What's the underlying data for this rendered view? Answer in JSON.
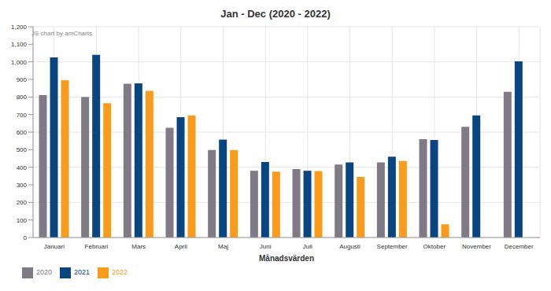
{
  "chart_data": {
    "type": "bar",
    "title": "Jan - Dec (2020 - 2022)",
    "annotation": "JS chart by amCharts",
    "x_label": "Månadsvärden",
    "categories": [
      "Januari",
      "Februari",
      "Mars",
      "April",
      "Maj",
      "Juni",
      "Juli",
      "Augusti",
      "September",
      "Oktober",
      "November",
      "December"
    ],
    "series": [
      {
        "name": "2020",
        "color": "#7f7a86",
        "values": [
          810,
          800,
          875,
          625,
          498,
          380,
          390,
          415,
          428,
          560,
          630,
          830
        ]
      },
      {
        "name": "2021",
        "color": "#0b4580",
        "values": [
          1025,
          1040,
          878,
          685,
          558,
          430,
          380,
          428,
          460,
          555,
          695,
          1003
        ]
      },
      {
        "name": "2022",
        "color": "#f99b1c",
        "values": [
          895,
          765,
          835,
          695,
          498,
          375,
          378,
          345,
          435,
          75,
          null,
          null
        ]
      }
    ],
    "ylim": [
      0,
      1200
    ],
    "yticks": [
      0,
      100,
      200,
      300,
      400,
      500,
      600,
      700,
      800,
      900,
      {
        "value": 1000,
        "label": "1,000"
      },
      {
        "value": 1100,
        "label": "1,100"
      },
      {
        "value": 1200,
        "label": "1,200"
      }
    ],
    "grid": true,
    "legend": "bottom-left"
  }
}
